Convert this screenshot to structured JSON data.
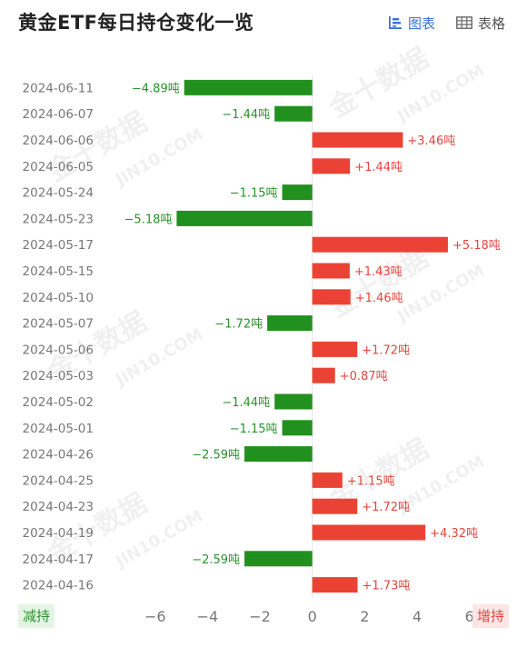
{
  "title": "黄金ETF每日持仓变化一览",
  "watermark": "金十数据",
  "watermark_en": "JIN10.COM",
  "view_toggle": {
    "chart_label": "图表",
    "chart_icon": "bar-chart-icon",
    "table_label": "表格",
    "table_icon": "table-grid-icon",
    "active": "chart"
  },
  "footer": {
    "left_label": "减持",
    "right_label": "增持"
  },
  "colors": {
    "positive": "#ea4335",
    "negative": "#22901f",
    "positive_text": "#e6443f",
    "negative_text": "#27922a",
    "active_tab": "#3b6fd6"
  },
  "chart_data": {
    "type": "bar",
    "orientation": "horizontal",
    "unit": "吨",
    "categories": [
      "2024-06-11",
      "2024-06-07",
      "2024-06-06",
      "2024-06-05",
      "2024-05-24",
      "2024-05-23",
      "2024-05-17",
      "2024-05-15",
      "2024-05-10",
      "2024-05-07",
      "2024-05-06",
      "2024-05-03",
      "2024-05-02",
      "2024-05-01",
      "2024-04-26",
      "2024-04-25",
      "2024-04-23",
      "2024-04-19",
      "2024-04-17",
      "2024-04-16"
    ],
    "values": [
      -4.89,
      -1.44,
      3.46,
      1.44,
      -1.15,
      -5.18,
      5.18,
      1.43,
      1.46,
      -1.72,
      1.72,
      0.87,
      -1.44,
      -1.15,
      -2.59,
      1.15,
      1.72,
      4.32,
      -2.59,
      1.73
    ],
    "labels": [
      "−4.89吨",
      "−1.44吨",
      "+3.46吨",
      "+1.44吨",
      "−1.15吨",
      "−5.18吨",
      "+5.18吨",
      "+1.43吨",
      "+1.46吨",
      "−1.72吨",
      "+1.72吨",
      "+0.87吨",
      "−1.44吨",
      "−1.15吨",
      "−2.59吨",
      "+1.15吨",
      "+1.72吨",
      "+4.32吨",
      "−2.59吨",
      "+1.73吨"
    ],
    "xticks": [
      -6,
      -4,
      -2,
      0,
      2,
      4,
      6
    ],
    "xtick_labels": [
      "−6",
      "−4",
      "−2",
      "0",
      "2",
      "4",
      "6"
    ],
    "xlim": [
      -7.9,
      8.2
    ],
    "grid": false
  }
}
